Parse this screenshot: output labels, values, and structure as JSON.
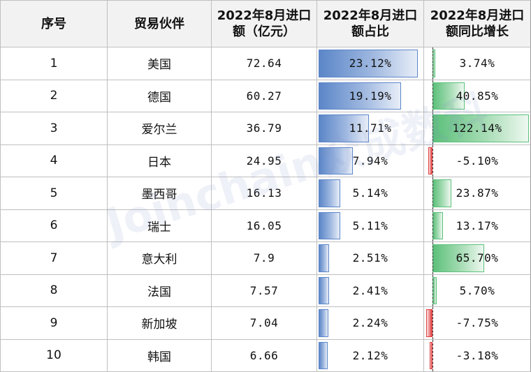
{
  "headers": {
    "seq": "序号",
    "partner": "贸易伙伴",
    "amount_l1": "2022年8月进口",
    "amount_l2": "额（亿元）",
    "share_l1": "2022年8月进口",
    "share_l2": "额占比",
    "yoy_l1": "2022年8月进口",
    "yoy_l2": "额同比增长"
  },
  "rows": [
    {
      "seq": "1",
      "partner": "美国",
      "amount": "72.64",
      "share": "23.12%",
      "share_value": 23.12,
      "yoy": "3.74%",
      "yoy_value": 3.74
    },
    {
      "seq": "2",
      "partner": "德国",
      "amount": "60.27",
      "share": "19.19%",
      "share_value": 19.19,
      "yoy": "40.85%",
      "yoy_value": 40.85
    },
    {
      "seq": "3",
      "partner": "爱尔兰",
      "amount": "36.79",
      "share": "11.71%",
      "share_value": 11.71,
      "yoy": "122.14%",
      "yoy_value": 122.14
    },
    {
      "seq": "4",
      "partner": "日本",
      "amount": "24.95",
      "share": "7.94%",
      "share_value": 7.94,
      "yoy": "-5.10%",
      "yoy_value": -5.1
    },
    {
      "seq": "5",
      "partner": "墨西哥",
      "amount": "16.13",
      "share": "5.14%",
      "share_value": 5.14,
      "yoy": "23.87%",
      "yoy_value": 23.87
    },
    {
      "seq": "6",
      "partner": "瑞士",
      "amount": "16.05",
      "share": "5.11%",
      "share_value": 5.11,
      "yoy": "13.17%",
      "yoy_value": 13.17
    },
    {
      "seq": "7",
      "partner": "意大利",
      "amount": "7.9",
      "share": "2.51%",
      "share_value": 2.51,
      "yoy": "65.70%",
      "yoy_value": 65.7
    },
    {
      "seq": "8",
      "partner": "法国",
      "amount": "7.57",
      "share": "2.41%",
      "share_value": 2.41,
      "yoy": "5.70%",
      "yoy_value": 5.7
    },
    {
      "seq": "9",
      "partner": "新加坡",
      "amount": "7.04",
      "share": "2.24%",
      "share_value": 2.24,
      "yoy": "-7.75%",
      "yoy_value": -7.75
    },
    {
      "seq": "10",
      "partner": "韩国",
      "amount": "6.66",
      "share": "2.12%",
      "share_value": 2.12,
      "yoy": "-3.18%",
      "yoy_value": -3.18
    }
  ],
  "watermark": "Joinchain众成数科",
  "colors": {
    "share_bar": "#5b86c8",
    "positive_bar": "#5cc07a",
    "negative_bar": "#e04040",
    "header_bg": "#f2f2f2"
  }
}
